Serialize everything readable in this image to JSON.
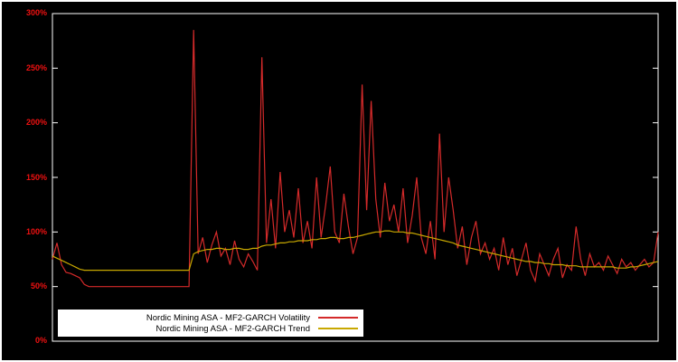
{
  "chart_data": {
    "type": "line",
    "title": "",
    "xlabel": "",
    "ylabel": "",
    "ylim": [
      0,
      300
    ],
    "grid": false,
    "background_color": "#000000",
    "frame_color": "#ffffff",
    "axis_label_color": "#ee1111",
    "legend_position": "bottom-left",
    "ytick_labels": [
      "0%",
      "50%",
      "100%",
      "150%",
      "200%",
      "250%",
      "300%"
    ],
    "ytick_values": [
      0,
      50,
      100,
      150,
      200,
      250,
      300
    ],
    "series": [
      {
        "name": "Nordic Mining ASA - MF2-GARCH Volatility",
        "color": "#d42a2a",
        "unit": "%",
        "values": [
          75,
          90,
          70,
          63,
          62,
          60,
          58,
          52,
          50,
          50,
          50,
          50,
          50,
          50,
          50,
          50,
          50,
          50,
          50,
          50,
          50,
          50,
          50,
          50,
          50,
          50,
          50,
          50,
          50,
          50,
          50,
          285,
          80,
          95,
          72,
          88,
          100,
          78,
          85,
          70,
          92,
          75,
          68,
          80,
          73,
          65,
          260,
          90,
          130,
          85,
          155,
          100,
          120,
          95,
          140,
          90,
          110,
          85,
          150,
          95,
          125,
          160,
          100,
          90,
          135,
          105,
          80,
          95,
          235,
          120,
          220,
          130,
          95,
          145,
          110,
          125,
          100,
          140,
          90,
          115,
          150,
          95,
          80,
          110,
          75,
          190,
          100,
          150,
          120,
          85,
          105,
          70,
          95,
          110,
          80,
          90,
          75,
          85,
          65,
          95,
          70,
          85,
          60,
          75,
          90,
          65,
          55,
          80,
          70,
          60,
          75,
          85,
          58,
          70,
          65,
          105,
          75,
          60,
          80,
          68,
          72,
          65,
          78,
          70,
          62,
          75,
          68,
          72,
          65,
          70,
          75,
          68,
          72,
          100
        ]
      },
      {
        "name": "Nordic Mining ASA - MF2-GARCH Trend",
        "color": "#c8a800",
        "unit": "%",
        "values": [
          78,
          76,
          74,
          72,
          70,
          68,
          66,
          65,
          65,
          65,
          65,
          65,
          65,
          65,
          65,
          65,
          65,
          65,
          65,
          65,
          65,
          65,
          65,
          65,
          65,
          65,
          65,
          65,
          65,
          65,
          65,
          80,
          82,
          83,
          84,
          84,
          85,
          85,
          84,
          84,
          85,
          85,
          84,
          84,
          85,
          85,
          87,
          88,
          88,
          89,
          90,
          90,
          91,
          91,
          92,
          92,
          92,
          93,
          93,
          94,
          94,
          95,
          95,
          94,
          94,
          95,
          95,
          96,
          97,
          98,
          99,
          100,
          100,
          101,
          101,
          100,
          100,
          100,
          99,
          99,
          98,
          97,
          96,
          95,
          94,
          93,
          92,
          91,
          90,
          88,
          87,
          86,
          85,
          84,
          83,
          82,
          81,
          80,
          79,
          78,
          77,
          76,
          75,
          74,
          73,
          73,
          72,
          72,
          71,
          71,
          70,
          70,
          70,
          69,
          69,
          69,
          68,
          68,
          68,
          68,
          68,
          68,
          68,
          68,
          67,
          67,
          67,
          68,
          68,
          69,
          70,
          71,
          72,
          73
        ]
      }
    ]
  }
}
